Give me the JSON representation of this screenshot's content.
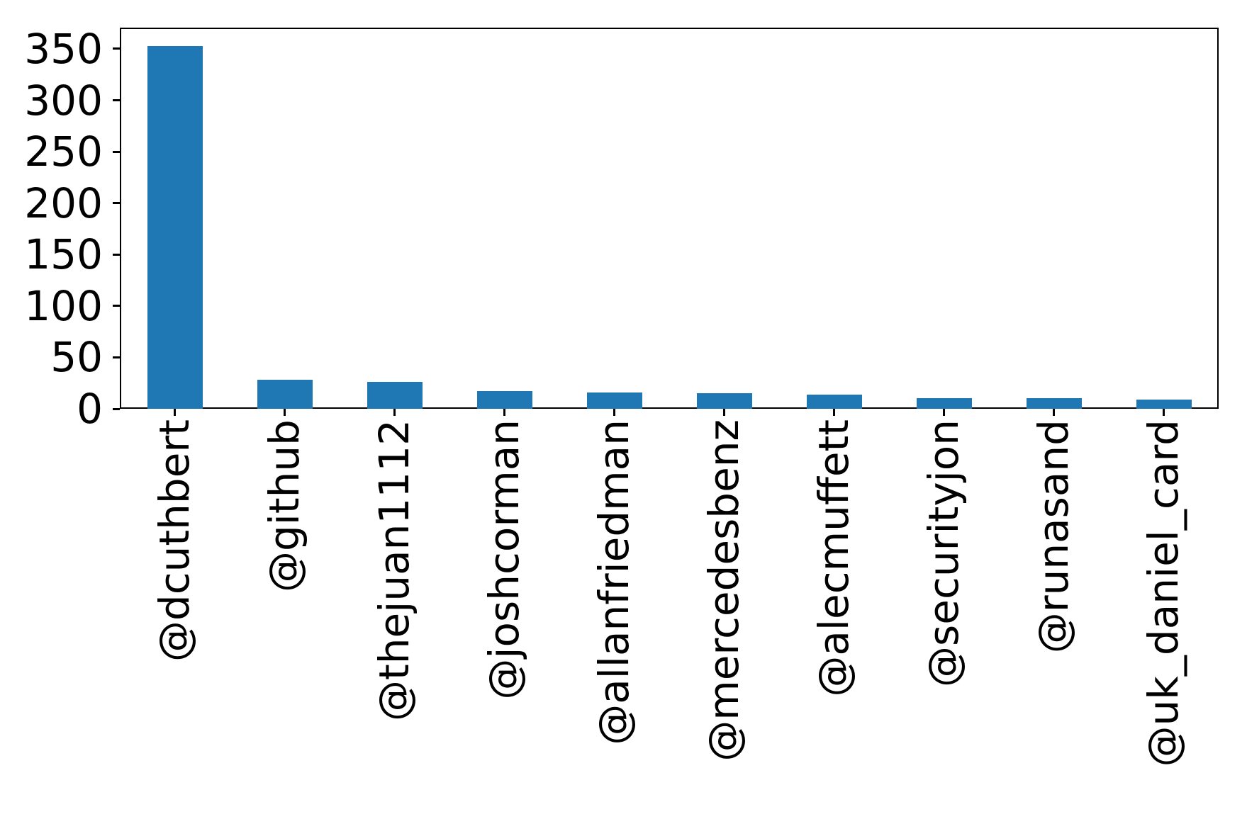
{
  "figure": {
    "background_color": "#ffffff",
    "frame_color": "#000000"
  },
  "chart_data": {
    "type": "bar",
    "title": "",
    "xlabel": "",
    "ylabel": "",
    "categories": [
      "@dcuthbert",
      "@github",
      "@thejuan1112",
      "@joshcorman",
      "@allanfriedman",
      "@mercedesbenz",
      "@alecmuffett",
      "@securityjon",
      "@runasand",
      "@uk_daniel_card"
    ],
    "values": [
      353,
      28,
      26,
      17,
      16,
      15,
      14,
      10,
      10,
      9
    ],
    "yticks": [
      0,
      50,
      100,
      150,
      200,
      250,
      300,
      350
    ],
    "ylim": [
      0,
      370.65
    ],
    "bar_color": "#1f77b4",
    "tick_color": "#000000",
    "text_color": "#000000",
    "x_tick_rotation_deg": 90,
    "grid": false,
    "legend": null,
    "bar_width_fraction": 0.5
  }
}
